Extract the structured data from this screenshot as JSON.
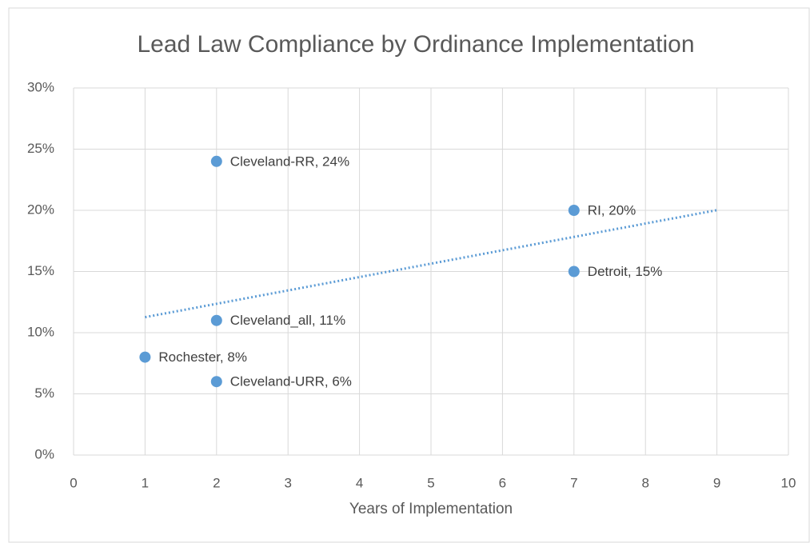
{
  "chart_data": {
    "type": "scatter",
    "title": "Lead Law Compliance by Ordinance Implementation",
    "xlabel": "Years of Implementation",
    "x": [
      2,
      7,
      7,
      2,
      1,
      2
    ],
    "values": [
      24,
      20,
      15,
      11,
      8,
      6
    ],
    "value_labels": [
      "Cleveland-RR, 24%",
      "RI, 20%",
      "Detroit, 15%",
      "Cleveland_all, 11%",
      "Rochester, 8%",
      "Cleveland-URR, 6%"
    ],
    "color": "#5b9bd5",
    "xlim": [
      0,
      10
    ],
    "xticks": [
      0,
      1,
      2,
      3,
      4,
      5,
      6,
      7,
      8,
      9,
      10
    ],
    "ylim": [
      0,
      30
    ],
    "yticks": [
      {
        "value": 0,
        "label": "0%"
      },
      {
        "value": 5,
        "label": "5%"
      },
      {
        "value": 10,
        "label": "10%"
      },
      {
        "value": 15,
        "label": "15%"
      },
      {
        "value": 20,
        "label": "20%"
      },
      {
        "value": 25,
        "label": "25%"
      },
      {
        "value": 30,
        "label": "30%"
      }
    ],
    "grid": true,
    "trendline": {
      "type": "linear",
      "xlim": [
        1,
        9
      ],
      "color": "#5b9bd5",
      "style": "dotted"
    }
  }
}
